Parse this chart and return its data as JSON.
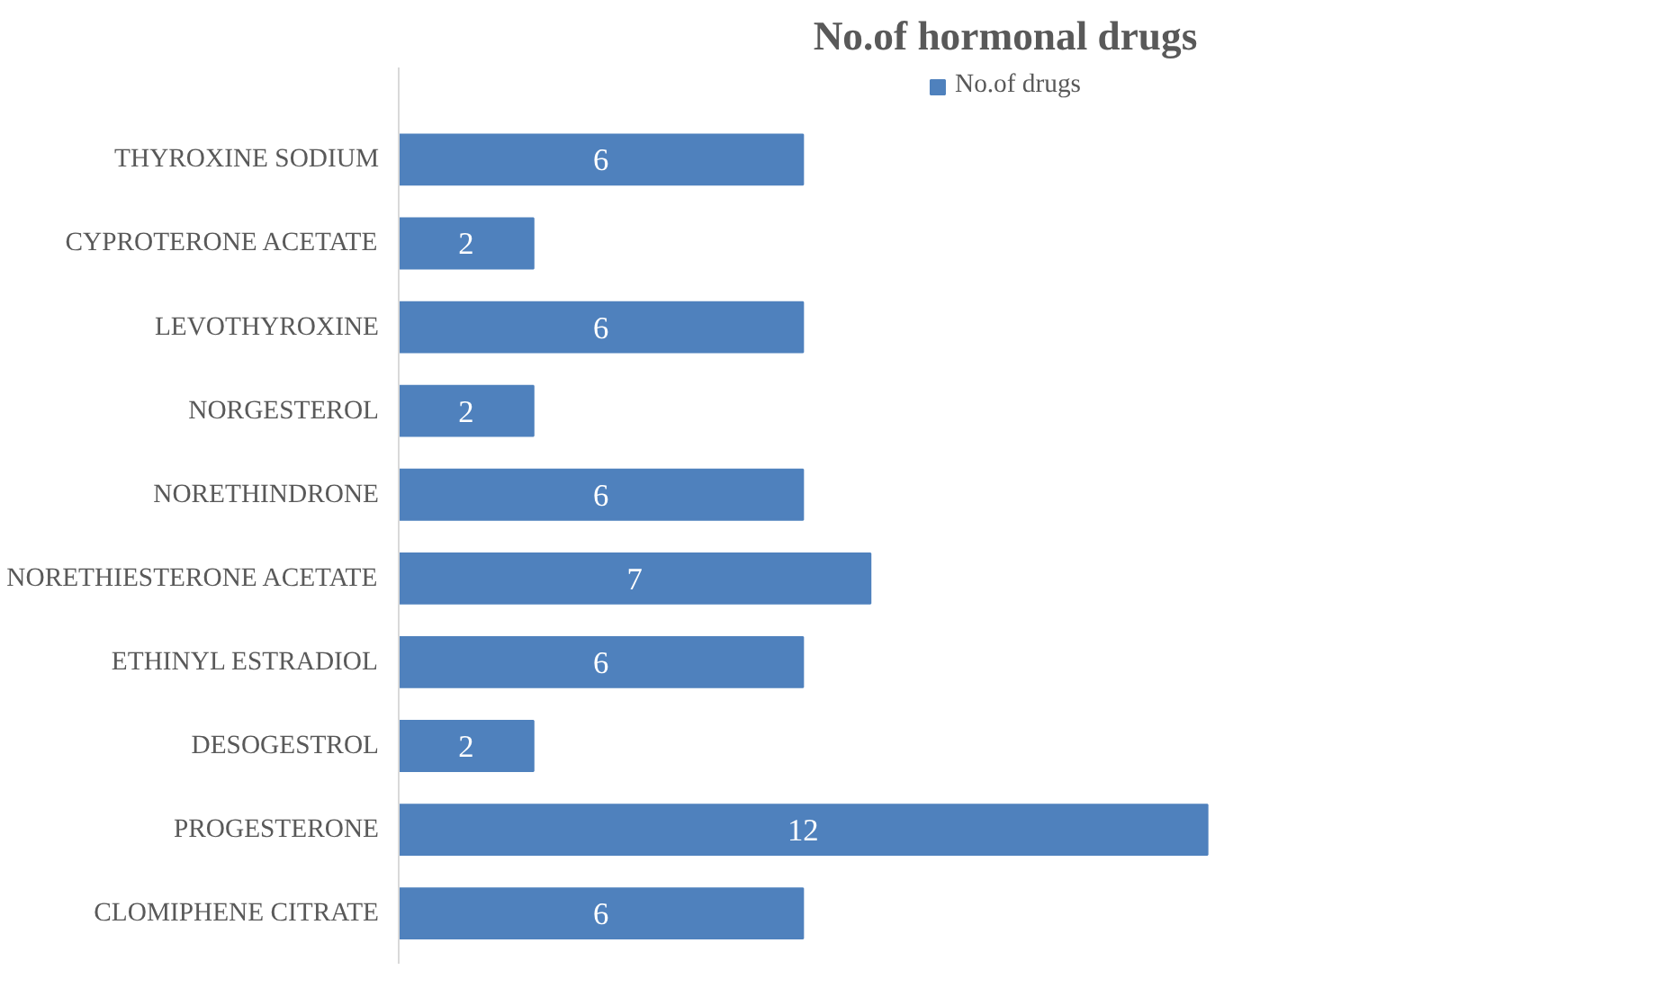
{
  "chart_data": {
    "type": "bar",
    "orientation": "horizontal",
    "title": "No.of hormonal drugs",
    "categories": [
      "THYROXINE SODIUM",
      "CYPROTERONE ACETATE",
      "LEVOTHYROXINE",
      "NORGESTEROL",
      "NORETHINDRONE",
      "NORETHIESTERONE ACETATE",
      "ETHINYL ESTRADIOL",
      "DESOGESTROL",
      "PROGESTERONE",
      "CLOMIPHENE CITRATE"
    ],
    "series": [
      {
        "name": "No.of drugs",
        "color": "#4f81bd",
        "values": [
          6,
          2,
          6,
          2,
          6,
          7,
          6,
          2,
          12,
          6
        ]
      }
    ],
    "data_labels": true,
    "legend": "top",
    "grid": false
  }
}
